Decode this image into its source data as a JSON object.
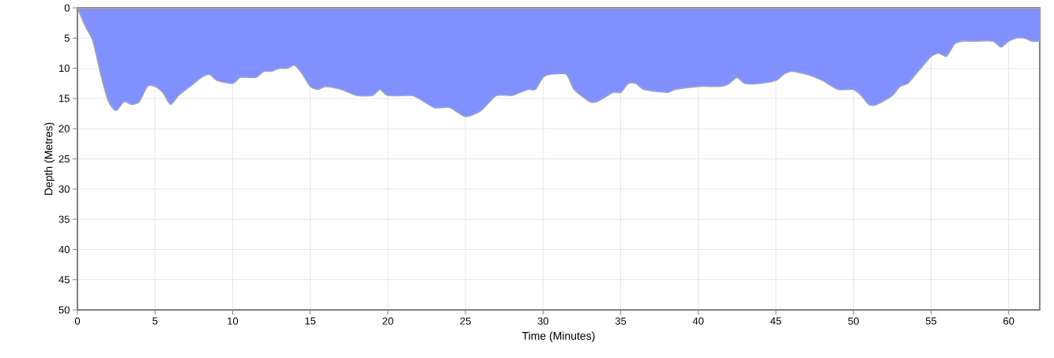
{
  "chart_data": {
    "type": "area",
    "xlabel": "Time (Minutes)",
    "ylabel": "Depth (Metres)",
    "x": [
      0,
      0.5,
      1,
      1.5,
      2,
      2.5,
      3,
      3.5,
      4,
      4.5,
      5,
      5.5,
      6,
      6.5,
      7,
      7.5,
      8,
      8.5,
      9,
      10,
      10.5,
      11.5,
      12,
      12.5,
      13,
      13.5,
      14,
      14.5,
      15,
      15.5,
      16,
      17,
      18,
      19,
      19.5,
      20,
      21.5,
      22,
      23,
      24,
      25,
      26,
      27,
      28,
      29,
      29.5,
      30,
      30.5,
      31.5,
      32,
      33,
      33.5,
      34.5,
      35,
      35.5,
      36,
      36.5,
      38,
      38.5,
      40,
      41.5,
      42,
      42.5,
      43,
      44,
      45,
      45.5,
      46,
      47,
      48,
      49,
      50,
      50.5,
      51,
      51.5,
      52.5,
      53,
      53.5,
      54,
      54.5,
      55,
      55.5,
      56,
      56.5,
      57,
      57.5,
      58,
      59,
      59.5,
      60,
      60.5,
      61,
      61.5,
      62
    ],
    "series": [
      {
        "color": "#8090ff",
        "values": [
          0,
          3,
          5.5,
          11,
          15.5,
          17,
          15.5,
          16,
          15.5,
          13,
          13,
          14,
          16,
          14.5,
          13.5,
          12.5,
          11.5,
          11,
          12,
          12.5,
          11.5,
          11.5,
          10.5,
          10.5,
          10,
          10,
          9.5,
          11,
          13,
          13.5,
          13,
          13.5,
          14.5,
          14.5,
          13.5,
          14.5,
          14.5,
          15,
          16.5,
          16.5,
          18,
          17,
          14.5,
          14.5,
          13.5,
          13.5,
          11.5,
          11,
          11,
          13.5,
          15.5,
          15.5,
          14,
          14,
          12.5,
          12.5,
          13.5,
          14,
          13.5,
          13,
          13,
          12.5,
          11.5,
          12.5,
          12.5,
          12,
          11,
          10.5,
          11,
          12,
          13.5,
          13.5,
          14.5,
          16,
          16,
          14.5,
          13,
          12.5,
          11,
          9.5,
          8,
          7.5,
          8,
          6,
          5.5,
          5.5,
          5.5,
          5.5,
          6.5,
          5.5,
          5,
          5,
          5.5,
          5.5
        ]
      }
    ],
    "xlim": [
      0,
      62
    ],
    "ylim": [
      50,
      0
    ],
    "xticks": [
      0,
      5,
      10,
      15,
      20,
      25,
      30,
      35,
      40,
      45,
      50,
      55,
      60
    ],
    "yticks": [
      0,
      5,
      10,
      15,
      20,
      25,
      30,
      35,
      40,
      45,
      50
    ],
    "grid": true
  }
}
